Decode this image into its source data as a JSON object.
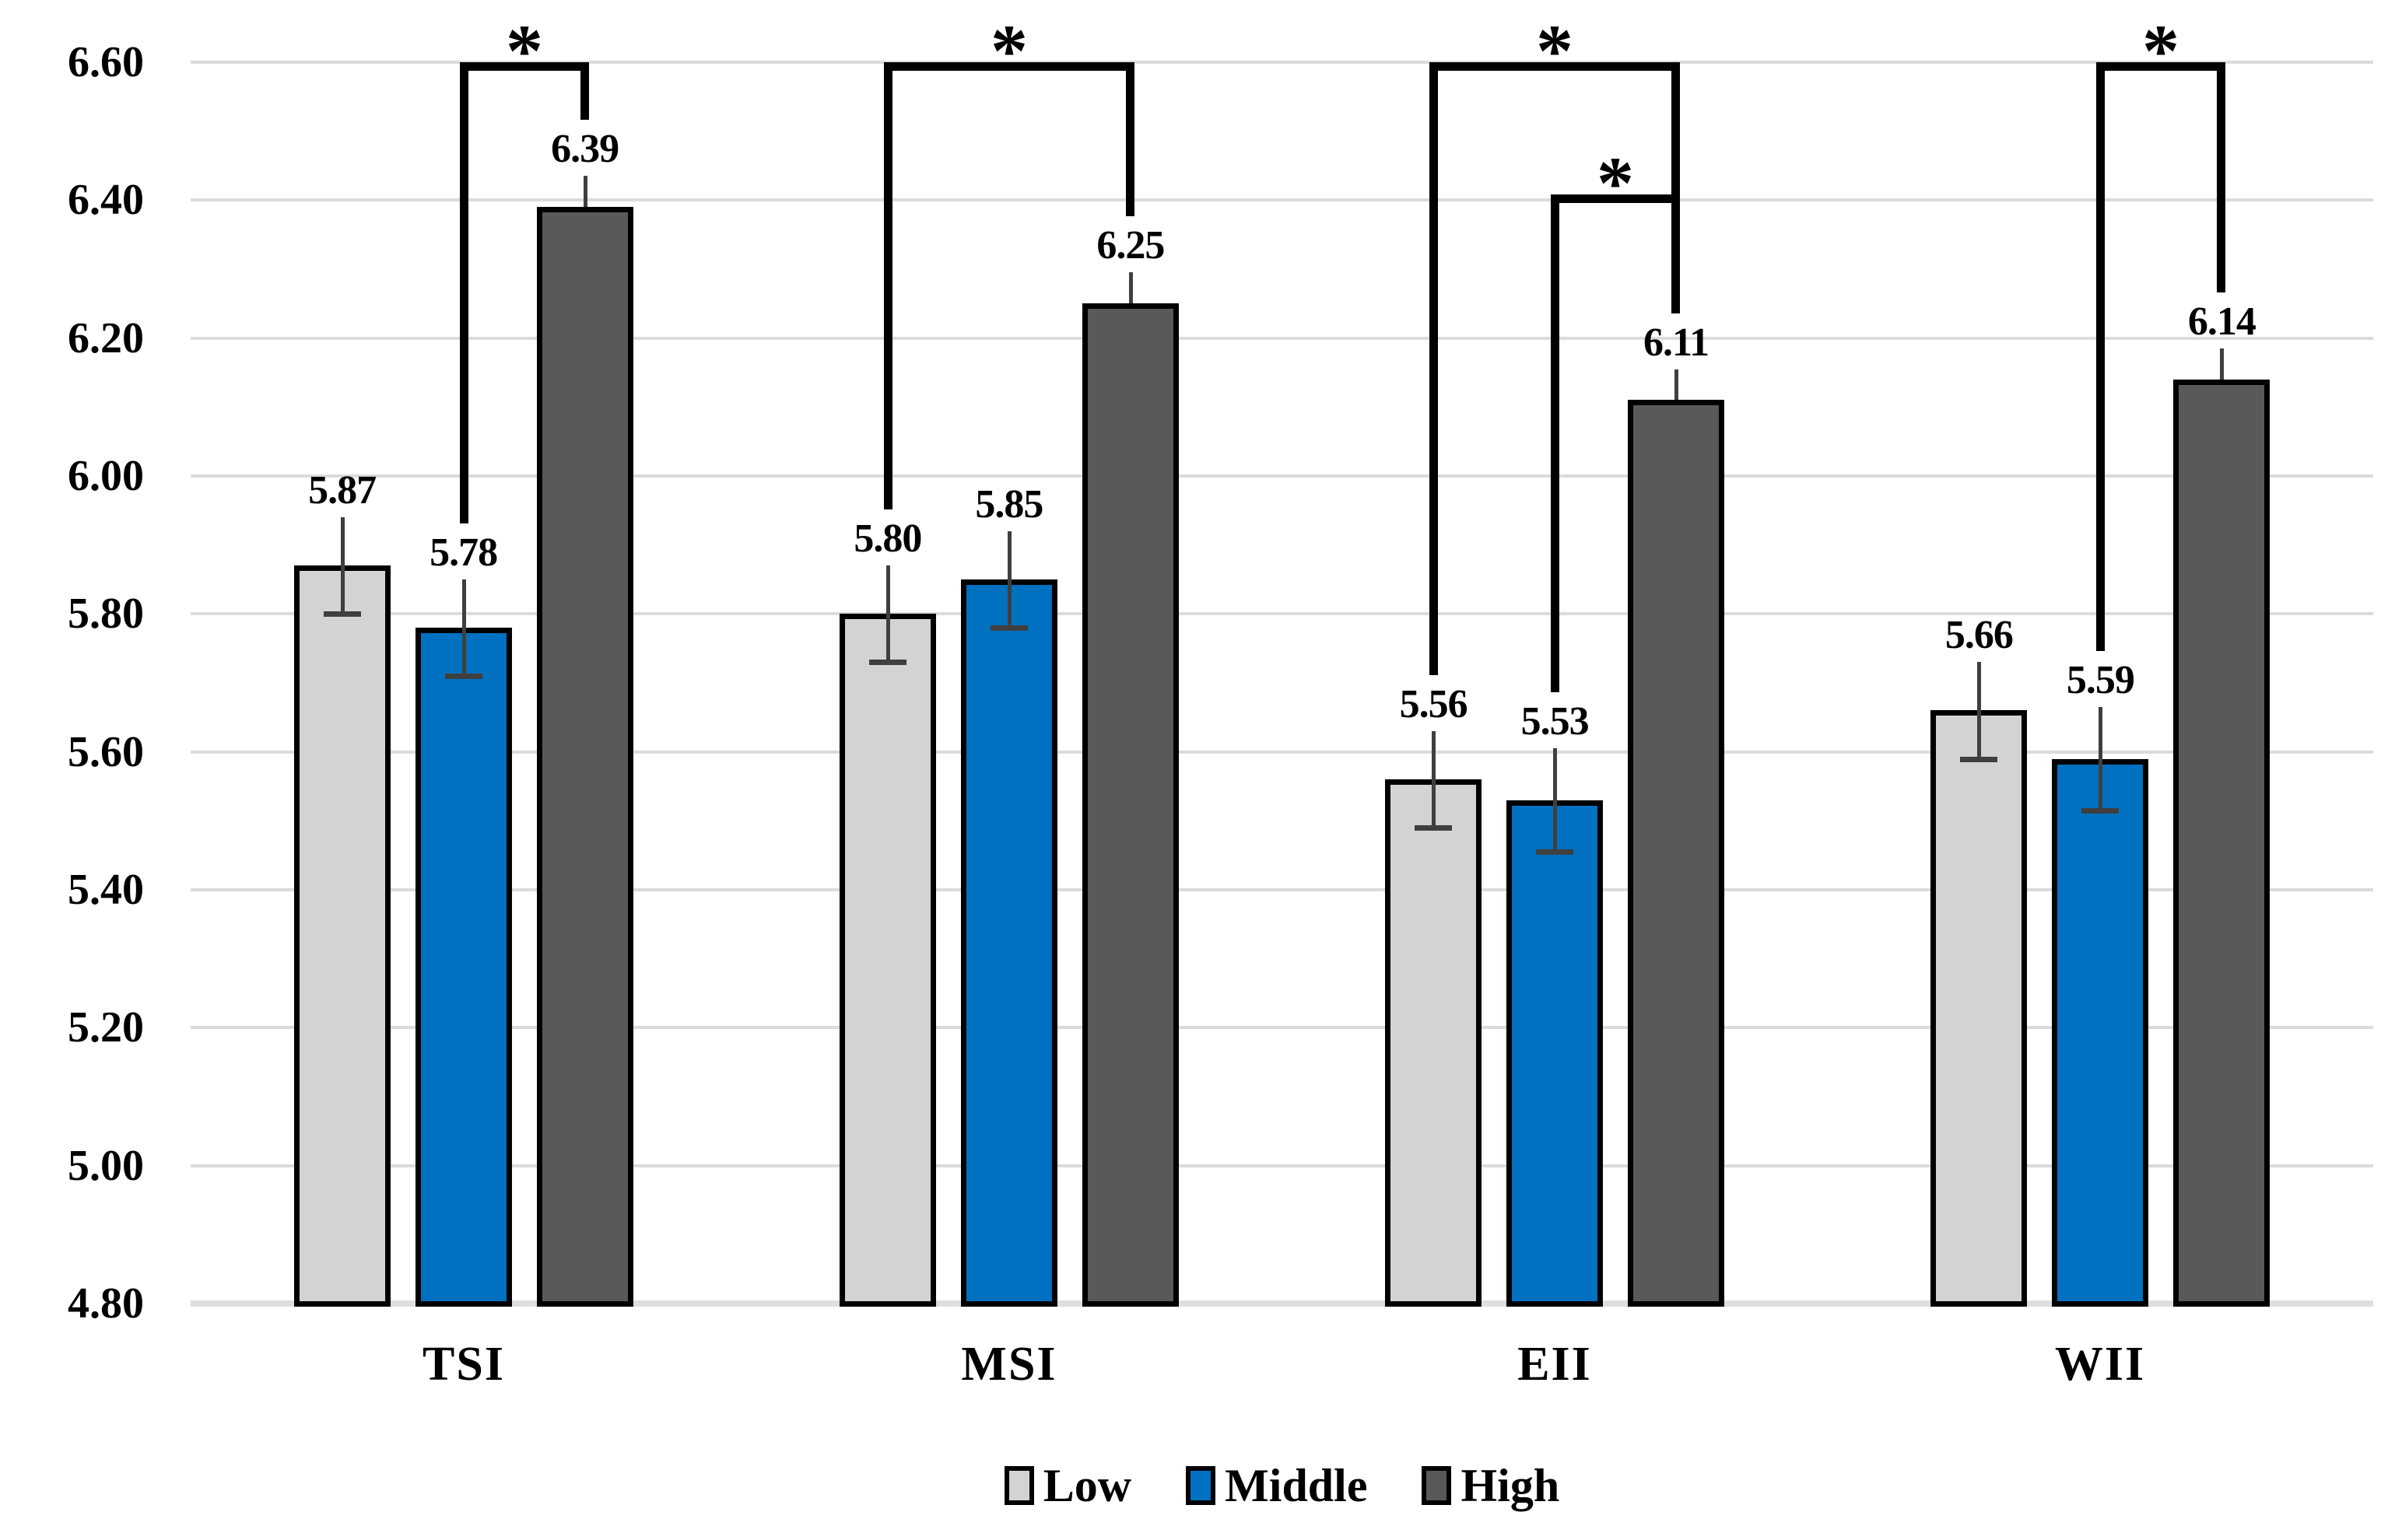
{
  "chart_data": {
    "type": "bar",
    "title": "",
    "xlabel": "",
    "ylabel": "",
    "categories": [
      "TSI",
      "MSI",
      "EII",
      "WII"
    ],
    "series": [
      {
        "name": "Low",
        "color": "#D3D3D3",
        "values": [
          5.87,
          5.8,
          5.56,
          5.66
        ],
        "labels": [
          "5.87",
          "5.80",
          "5.56",
          "5.66"
        ],
        "errors": [
          0.07,
          0.07,
          0.07,
          0.07
        ]
      },
      {
        "name": "Middle",
        "color": "#0070C0",
        "values": [
          5.78,
          5.85,
          5.53,
          5.59
        ],
        "labels": [
          "5.78",
          "5.85",
          "5.53",
          "5.59"
        ],
        "errors": [
          0.07,
          0.07,
          0.075,
          0.075
        ]
      },
      {
        "name": "High",
        "color": "#595959",
        "values": [
          6.39,
          6.25,
          6.11,
          6.14
        ],
        "labels": [
          "6.39",
          "6.25",
          "6.11",
          "6.14"
        ],
        "errors": [
          0.045,
          0.045,
          0.045,
          0.045
        ]
      }
    ],
    "y_axis": {
      "min": 4.8,
      "max": 6.6,
      "step": 0.2,
      "tick_labels": [
        "6.60",
        "6.40",
        "6.20",
        "6.00",
        "5.80",
        "5.60",
        "5.40",
        "5.20",
        "5.00",
        "4.80"
      ]
    },
    "grid": true,
    "legend_position": "bottom",
    "legend_entries": [
      "Low",
      "Middle",
      "High"
    ],
    "significance_brackets": [
      {
        "category": "TSI",
        "from_series": "Middle",
        "to_series": "High",
        "top_value": 6.6,
        "label": "*"
      },
      {
        "category": "MSI",
        "from_series": "Low",
        "to_series": "High",
        "top_value": 6.6,
        "label": "*"
      },
      {
        "category": "EII",
        "from_series": "Low",
        "to_series": "High",
        "top_value": 6.6,
        "label": "*",
        "right_stop_value": 6.408
      },
      {
        "category": "EII",
        "from_series": "Middle",
        "to_series": "High",
        "top_value": 6.408,
        "label": "*"
      },
      {
        "category": "WII",
        "from_series": "Middle",
        "to_series": "High",
        "top_value": 6.6,
        "label": "*"
      }
    ],
    "colors": {
      "gridline": "#DBDBDB",
      "axis_line": "#DEDEDE",
      "bar_border": "#000000",
      "error_bar": "#3F3F3F",
      "bracket": "#000000",
      "text": "#000000"
    }
  }
}
